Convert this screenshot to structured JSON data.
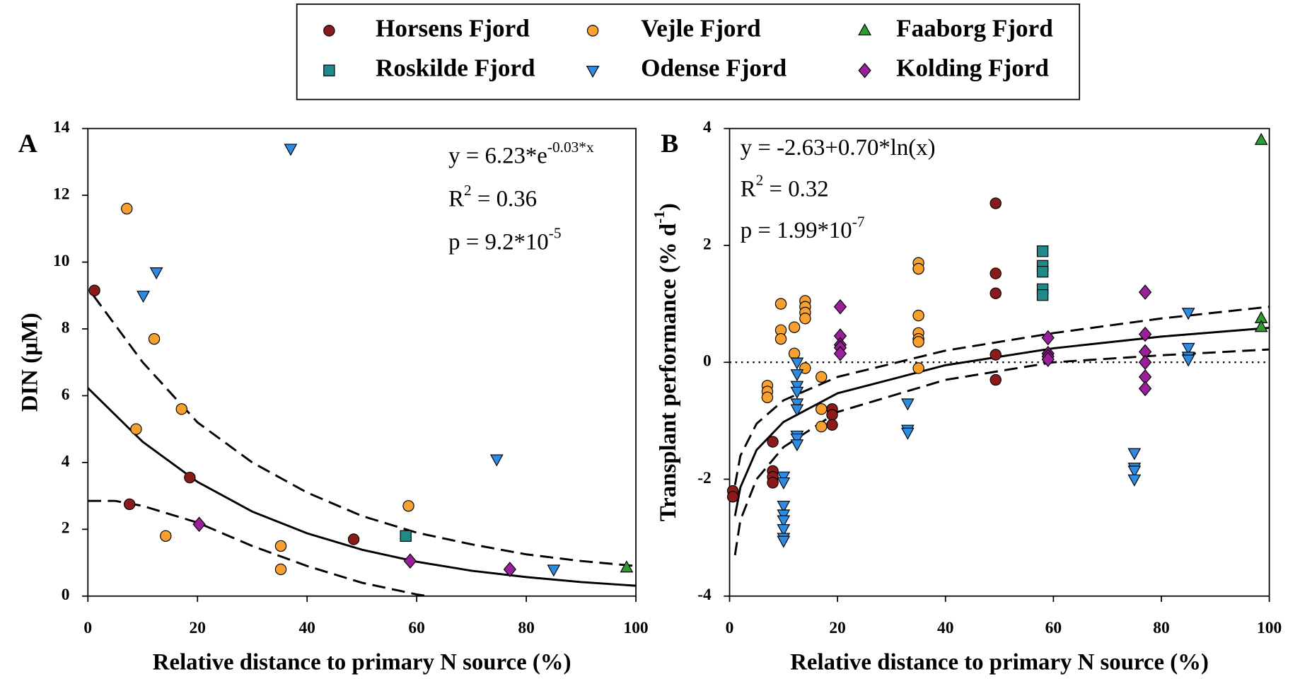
{
  "legend": {
    "columns": 3
  },
  "chart_data": [
    {
      "type": "scatter",
      "panel_label": "A",
      "xlabel": "Relative distance to primary N source (%)",
      "ylabel": [
        {
          "text": "DIN (µM)"
        }
      ],
      "xlim": [
        0,
        100
      ],
      "xticks": [
        0,
        20,
        40,
        60,
        80,
        100
      ],
      "ylim": [
        0,
        14
      ],
      "yticks": [
        0,
        2,
        4,
        6,
        8,
        10,
        12,
        14
      ],
      "annotations": [
        [
          {
            "text": "y = 6.23*e"
          },
          {
            "text": "-0.03*x",
            "sup": true
          }
        ],
        [
          {
            "text": "R"
          },
          {
            "text": "2",
            "sup": true
          },
          {
            "text": " = 0.36"
          }
        ],
        [
          {
            "text": "p = 9.2*10"
          },
          {
            "text": "-5",
            "sup": true
          }
        ]
      ],
      "lines": [
        {
          "style": "solid",
          "x": [
            0,
            10,
            20,
            30,
            40,
            50,
            60,
            70,
            80,
            90,
            100
          ],
          "y": [
            6.23,
            4.62,
            3.42,
            2.53,
            1.88,
            1.39,
            1.03,
            0.76,
            0.57,
            0.42,
            0.31
          ]
        },
        {
          "style": "dashed",
          "x": [
            1,
            10,
            20,
            30,
            40,
            50,
            60,
            70,
            80,
            90,
            100
          ],
          "y": [
            9.0,
            7.0,
            5.2,
            4.0,
            3.1,
            2.4,
            1.9,
            1.55,
            1.25,
            1.05,
            0.9
          ]
        },
        {
          "style": "dashed",
          "x": [
            0,
            5,
            10,
            20,
            30,
            40,
            50,
            60,
            62
          ],
          "y": [
            2.85,
            2.85,
            2.7,
            2.2,
            1.5,
            0.9,
            0.4,
            0.05,
            0
          ]
        }
      ],
      "series": [
        {
          "name": "Horsens Fjord",
          "color": "#8b1a1a",
          "marker": "circle",
          "x": [
            1.2,
            7.6,
            18.6,
            48.5
          ],
          "y": [
            9.15,
            2.75,
            3.55,
            1.7
          ]
        },
        {
          "name": "Vejle Fjord",
          "color": "#f7a030",
          "marker": "circle",
          "x": [
            7.1,
            12.1,
            8.8,
            17.1,
            14.2,
            35.2,
            35.2,
            58.5
          ],
          "y": [
            11.6,
            7.7,
            5.0,
            5.6,
            1.8,
            1.5,
            0.8,
            2.7
          ]
        },
        {
          "name": "Faaborg Fjord",
          "color": "#2e9b2e",
          "marker": "triangle-up",
          "x": [
            98.3
          ],
          "y": [
            0.85
          ]
        },
        {
          "name": "Roskilde Fjord",
          "color": "#1f8a8a",
          "marker": "square",
          "x": [
            58
          ],
          "y": [
            1.8
          ]
        },
        {
          "name": "Odense Fjord",
          "color": "#2f8be0",
          "marker": "triangle-down",
          "x": [
            37,
            10.1,
            12.5,
            74.6,
            85
          ],
          "y": [
            13.4,
            9.0,
            9.7,
            4.1,
            0.8
          ]
        },
        {
          "name": "Kolding Fjord",
          "color": "#9b1f9b",
          "marker": "diamond",
          "x": [
            20.3,
            58.8,
            77
          ],
          "y": [
            2.15,
            1.05,
            0.8
          ]
        }
      ]
    },
    {
      "type": "scatter",
      "panel_label": "B",
      "xlabel": "Relative distance to primary N source (%)",
      "ylabel": [
        {
          "text": "Transplant performance (% d"
        },
        {
          "text": "-1",
          "sup": true
        },
        {
          "text": ")"
        }
      ],
      "xlim": [
        0,
        100
      ],
      "xticks": [
        0,
        20,
        40,
        60,
        80,
        100
      ],
      "ylim": [
        -4,
        4
      ],
      "yticks": [
        -4,
        -2,
        0,
        2,
        4
      ],
      "hline": {
        "y": 0,
        "style": "dotted"
      },
      "annotations": [
        [
          {
            "text": "y = -2.63+0.70*ln(x)"
          }
        ],
        [
          {
            "text": "R"
          },
          {
            "text": "2",
            "sup": true
          },
          {
            "text": " = 0.32"
          }
        ],
        [
          {
            "text": "p = 1.99*10"
          },
          {
            "text": "-7",
            "sup": true
          }
        ]
      ],
      "lines": [
        {
          "style": "solid",
          "x": [
            1,
            2,
            5,
            10,
            20,
            40,
            60,
            80,
            100
          ],
          "y": [
            -2.63,
            -2.14,
            -1.5,
            -1.02,
            -0.53,
            -0.05,
            0.24,
            0.44,
            0.59
          ]
        },
        {
          "style": "dashed",
          "x": [
            1,
            2,
            5,
            10,
            20,
            40,
            60,
            80,
            100
          ],
          "y": [
            -2.1,
            -1.6,
            -1.05,
            -0.65,
            -0.25,
            0.2,
            0.5,
            0.75,
            0.95
          ]
        },
        {
          "style": "dashed",
          "x": [
            1,
            2,
            5,
            10,
            20,
            40,
            60,
            80,
            100
          ],
          "y": [
            -3.3,
            -2.7,
            -2.0,
            -1.45,
            -0.85,
            -0.3,
            0.0,
            0.12,
            0.22
          ]
        }
      ],
      "series": [
        {
          "name": "Horsens Fjord",
          "color": "#8b1a1a",
          "marker": "circle",
          "x": [
            0.6,
            0.6,
            8,
            8,
            8,
            8,
            19,
            19,
            19,
            49.3,
            49.3,
            49.3,
            49.3,
            49.3
          ],
          "y": [
            -2.2,
            -2.3,
            -1.36,
            -1.86,
            -1.96,
            -2.06,
            -0.8,
            -0.9,
            -1.07,
            2.72,
            1.52,
            1.18,
            0.13,
            -0.3
          ]
        },
        {
          "name": "Vejle Fjord",
          "color": "#f7a030",
          "marker": "circle",
          "x": [
            7,
            7,
            7,
            9.5,
            9.5,
            9.5,
            12,
            12,
            14,
            14,
            14,
            14,
            14,
            17,
            17,
            17,
            35,
            35,
            35,
            35,
            35,
            35,
            35
          ],
          "y": [
            -0.4,
            -0.5,
            -0.6,
            1.0,
            0.55,
            0.4,
            0.6,
            0.15,
            1.05,
            0.95,
            0.85,
            0.75,
            -0.1,
            -0.25,
            -0.8,
            -1.1,
            1.7,
            1.6,
            0.8,
            0.5,
            0.4,
            0.35,
            -0.1
          ]
        },
        {
          "name": "Faaborg Fjord",
          "color": "#2e9b2e",
          "marker": "triangle-up",
          "x": [
            98.5,
            98.5,
            98.5
          ],
          "y": [
            3.8,
            0.75,
            0.6
          ]
        },
        {
          "name": "Roskilde Fjord",
          "color": "#1f8a8a",
          "marker": "square",
          "x": [
            58,
            58,
            58,
            58,
            58
          ],
          "y": [
            1.9,
            1.65,
            1.55,
            1.25,
            1.15
          ]
        },
        {
          "name": "Odense Fjord",
          "color": "#2f8be0",
          "marker": "triangle-down",
          "x": [
            12.5,
            12.5,
            12.5,
            12.5,
            12.5,
            12.5,
            12.5,
            12.5,
            12.5,
            10,
            10,
            10,
            10,
            10,
            10,
            10,
            10,
            33,
            33,
            33,
            75,
            75,
            75,
            75,
            85,
            85,
            85,
            85
          ],
          "y": [
            0.0,
            -0.2,
            -0.4,
            -0.5,
            -0.7,
            -0.8,
            -1.25,
            -1.3,
            -1.4,
            -1.95,
            -2.05,
            -2.45,
            -2.6,
            -2.7,
            -2.85,
            -3.0,
            -3.05,
            -0.7,
            -1.15,
            -1.2,
            -1.55,
            -1.8,
            -1.85,
            -2.0,
            0.85,
            0.25,
            0.1,
            0.05
          ]
        },
        {
          "name": "Kolding Fjord",
          "color": "#9b1f9b",
          "marker": "diamond",
          "x": [
            20.5,
            20.5,
            20.5,
            20.5,
            20.5,
            59,
            59,
            59,
            59,
            77,
            77,
            77,
            77,
            77,
            77
          ],
          "y": [
            0.95,
            0.45,
            0.3,
            0.25,
            0.15,
            0.42,
            0.15,
            0.1,
            0.05,
            1.2,
            0.48,
            0.18,
            0,
            -0.25,
            -0.45
          ]
        }
      ]
    }
  ]
}
